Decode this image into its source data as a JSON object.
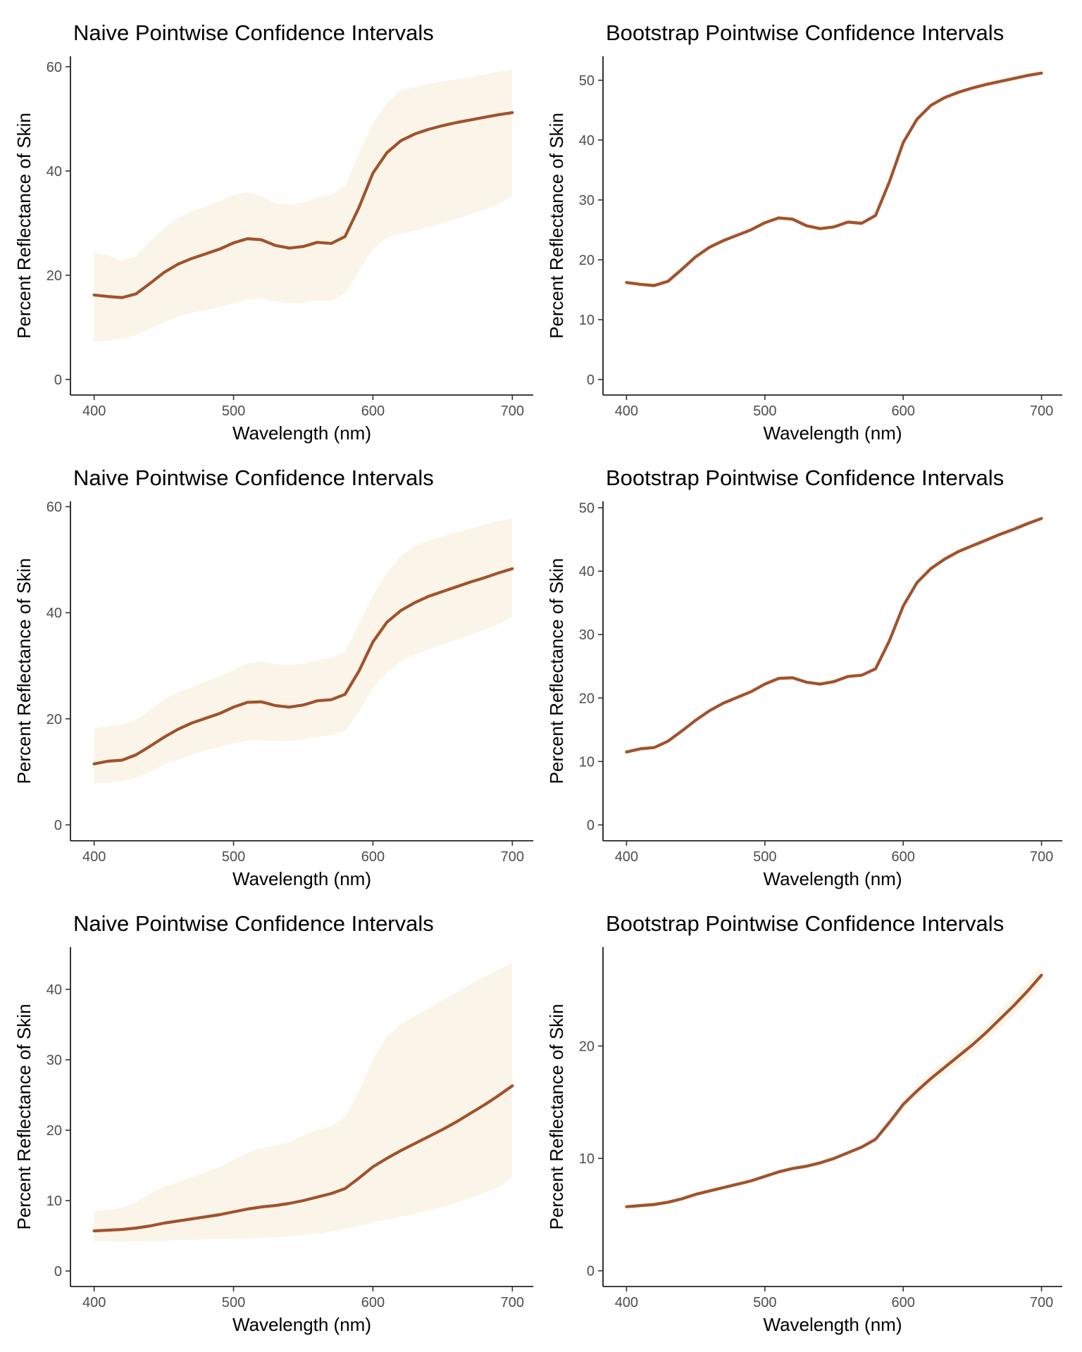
{
  "colors": {
    "line": "#a0522d",
    "band": "#faf5e8",
    "axis": "#000000",
    "tick_text": "#4d4d4d"
  },
  "chart_data": [
    {
      "type": "line",
      "title": "Naive Pointwise Confidence Intervals",
      "xlabel": "Wavelength (nm)",
      "ylabel": "Percent Reflectance of Skin",
      "xlim": [
        383,
        715
      ],
      "ylim": [
        -3,
        62
      ],
      "xticks": [
        400,
        500,
        600,
        700
      ],
      "yticks": [
        0,
        20,
        40,
        60
      ],
      "grid": false,
      "x": [
        400,
        410,
        420,
        430,
        440,
        450,
        460,
        470,
        480,
        490,
        500,
        510,
        520,
        530,
        540,
        550,
        560,
        570,
        580,
        590,
        600,
        610,
        620,
        630,
        640,
        650,
        660,
        670,
        680,
        690,
        700
      ],
      "series": [
        {
          "values": [
            16.2,
            15.9,
            15.7,
            16.4,
            18.4,
            20.5,
            22.1,
            23.2,
            24.1,
            25.0,
            26.2,
            27.0,
            26.8,
            25.7,
            25.2,
            25.5,
            26.3,
            26.1,
            27.4,
            33.0,
            39.6,
            43.5,
            45.8,
            47.1,
            48.0,
            48.7,
            49.3,
            49.8,
            50.3,
            50.8,
            51.2
          ],
          "lower": [
            7.2,
            7.4,
            7.8,
            8.5,
            9.7,
            11.0,
            12.0,
            12.8,
            13.3,
            13.9,
            14.6,
            15.4,
            15.5,
            15.0,
            14.6,
            14.7,
            15.2,
            15.0,
            16.5,
            20.8,
            25.0,
            27.2,
            28.0,
            28.5,
            29.2,
            30.0,
            30.8,
            31.7,
            32.6,
            33.6,
            35.3
          ],
          "upper": [
            24.3,
            23.8,
            22.7,
            23.6,
            26.5,
            29.0,
            31.0,
            32.2,
            33.2,
            34.3,
            35.4,
            35.9,
            35.2,
            33.8,
            33.5,
            34.0,
            34.9,
            35.4,
            37.0,
            43.5,
            49.2,
            53.2,
            55.4,
            56.1,
            56.7,
            57.2,
            57.6,
            58.0,
            58.5,
            59.1,
            59.5
          ]
        }
      ]
    },
    {
      "type": "line",
      "title": "Bootstrap Pointwise Confidence Intervals",
      "xlabel": "Wavelength (nm)",
      "ylabel": "Percent Reflectance of Skin",
      "xlim": [
        383,
        715
      ],
      "ylim": [
        -2.6,
        54
      ],
      "xticks": [
        400,
        500,
        600,
        700
      ],
      "yticks": [
        0,
        10,
        20,
        30,
        40,
        50
      ],
      "grid": false,
      "x": [
        400,
        410,
        420,
        430,
        440,
        450,
        460,
        470,
        480,
        490,
        500,
        510,
        520,
        530,
        540,
        550,
        560,
        570,
        580,
        590,
        600,
        610,
        620,
        630,
        640,
        650,
        660,
        670,
        680,
        690,
        700
      ],
      "series": [
        {
          "values": [
            16.2,
            15.9,
            15.7,
            16.4,
            18.4,
            20.5,
            22.1,
            23.2,
            24.1,
            25.0,
            26.2,
            27.0,
            26.8,
            25.7,
            25.2,
            25.5,
            26.3,
            26.1,
            27.4,
            33.0,
            39.6,
            43.5,
            45.8,
            47.1,
            48.0,
            48.7,
            49.3,
            49.8,
            50.3,
            50.8,
            51.2
          ],
          "lower": [
            15.8,
            15.5,
            15.3,
            16.0,
            18.0,
            20.1,
            21.7,
            22.8,
            23.7,
            24.6,
            25.8,
            26.6,
            26.4,
            25.3,
            24.8,
            25.1,
            25.9,
            25.7,
            27.0,
            32.5,
            39.1,
            43.0,
            45.4,
            46.7,
            47.6,
            48.3,
            48.9,
            49.4,
            49.9,
            50.4,
            50.8
          ],
          "upper": [
            16.6,
            16.3,
            16.1,
            16.8,
            18.8,
            20.9,
            22.5,
            23.6,
            24.5,
            25.4,
            26.6,
            27.4,
            27.2,
            26.1,
            25.6,
            25.9,
            26.7,
            26.5,
            27.8,
            33.5,
            40.1,
            44.0,
            46.2,
            47.5,
            48.4,
            49.1,
            49.7,
            50.2,
            50.7,
            51.2,
            51.6
          ]
        }
      ]
    },
    {
      "type": "line",
      "title": "Naive Pointwise Confidence Intervals",
      "xlabel": "Wavelength (nm)",
      "ylabel": "Percent Reflectance of Skin",
      "xlim": [
        383,
        715
      ],
      "ylim": [
        -3,
        61
      ],
      "xticks": [
        400,
        500,
        600,
        700
      ],
      "yticks": [
        0,
        20,
        40,
        60
      ],
      "grid": false,
      "x": [
        400,
        410,
        420,
        430,
        440,
        450,
        460,
        470,
        480,
        490,
        500,
        510,
        520,
        530,
        540,
        550,
        560,
        570,
        580,
        590,
        600,
        610,
        620,
        630,
        640,
        650,
        660,
        670,
        680,
        690,
        700
      ],
      "series": [
        {
          "values": [
            11.5,
            12.0,
            12.2,
            13.2,
            14.8,
            16.5,
            18.0,
            19.2,
            20.1,
            21.0,
            22.2,
            23.1,
            23.2,
            22.5,
            22.2,
            22.6,
            23.4,
            23.6,
            24.6,
            29.0,
            34.5,
            38.2,
            40.4,
            41.9,
            43.1,
            44.0,
            44.9,
            45.8,
            46.6,
            47.5,
            48.3
          ],
          "lower": [
            7.8,
            8.0,
            8.3,
            8.8,
            10.0,
            11.3,
            12.3,
            13.2,
            14.0,
            14.7,
            15.4,
            15.9,
            16.0,
            15.8,
            15.8,
            16.1,
            16.6,
            16.9,
            17.7,
            21.3,
            25.8,
            28.6,
            30.8,
            32.1,
            33.1,
            34.0,
            34.9,
            35.8,
            36.8,
            37.8,
            39.3
          ],
          "upper": [
            18.2,
            18.6,
            18.9,
            19.8,
            21.6,
            23.7,
            25.0,
            26.0,
            27.0,
            28.0,
            29.2,
            30.5,
            30.8,
            30.3,
            30.2,
            30.4,
            31.1,
            31.5,
            32.6,
            38.0,
            43.3,
            47.5,
            50.7,
            52.6,
            53.6,
            54.4,
            55.2,
            55.9,
            56.6,
            57.3,
            57.8
          ]
        }
      ]
    },
    {
      "type": "line",
      "title": "Bootstrap Pointwise Confidence Intervals",
      "xlabel": "Wavelength (nm)",
      "ylabel": "Percent Reflectance of Skin",
      "xlim": [
        383,
        715
      ],
      "ylim": [
        -2.5,
        51
      ],
      "xticks": [
        400,
        500,
        600,
        700
      ],
      "yticks": [
        0,
        10,
        20,
        30,
        40,
        50
      ],
      "grid": false,
      "x": [
        400,
        410,
        420,
        430,
        440,
        450,
        460,
        470,
        480,
        490,
        500,
        510,
        520,
        530,
        540,
        550,
        560,
        570,
        580,
        590,
        600,
        610,
        620,
        630,
        640,
        650,
        660,
        670,
        680,
        690,
        700
      ],
      "series": [
        {
          "values": [
            11.5,
            12.0,
            12.2,
            13.2,
            14.8,
            16.5,
            18.0,
            19.2,
            20.1,
            21.0,
            22.2,
            23.1,
            23.2,
            22.5,
            22.2,
            22.6,
            23.4,
            23.6,
            24.6,
            29.0,
            34.5,
            38.2,
            40.4,
            41.9,
            43.1,
            44.0,
            44.9,
            45.8,
            46.6,
            47.5,
            48.3
          ],
          "lower": [
            11.2,
            11.7,
            11.9,
            12.9,
            14.5,
            16.2,
            17.7,
            18.9,
            19.8,
            20.7,
            21.9,
            22.8,
            22.9,
            22.2,
            21.9,
            22.3,
            23.1,
            23.3,
            24.3,
            28.6,
            34.1,
            37.8,
            40.0,
            41.5,
            42.7,
            43.6,
            44.5,
            45.4,
            46.2,
            47.1,
            47.9
          ],
          "upper": [
            11.8,
            12.3,
            12.5,
            13.5,
            15.1,
            16.8,
            18.3,
            19.5,
            20.4,
            21.3,
            22.5,
            23.4,
            23.5,
            22.8,
            22.5,
            22.9,
            23.7,
            23.9,
            24.9,
            29.4,
            34.9,
            38.6,
            40.8,
            42.3,
            43.5,
            44.4,
            45.3,
            46.2,
            47.0,
            47.9,
            48.7
          ]
        }
      ]
    },
    {
      "type": "line",
      "title": "Naive Pointwise Confidence Intervals",
      "xlabel": "Wavelength (nm)",
      "ylabel": "Percent Reflectance of Skin",
      "xlim": [
        383,
        715
      ],
      "ylim": [
        -2.2,
        46
      ],
      "xticks": [
        400,
        500,
        600,
        700
      ],
      "yticks": [
        0,
        10,
        20,
        30,
        40
      ],
      "grid": false,
      "x": [
        400,
        410,
        420,
        430,
        440,
        450,
        460,
        470,
        480,
        490,
        500,
        510,
        520,
        530,
        540,
        550,
        560,
        570,
        580,
        590,
        600,
        610,
        620,
        630,
        640,
        650,
        660,
        670,
        680,
        690,
        700
      ],
      "series": [
        {
          "values": [
            5.7,
            5.8,
            5.9,
            6.1,
            6.4,
            6.8,
            7.1,
            7.4,
            7.7,
            8.0,
            8.4,
            8.8,
            9.1,
            9.3,
            9.6,
            10.0,
            10.5,
            11.0,
            11.7,
            13.2,
            14.8,
            16.0,
            17.1,
            18.1,
            19.1,
            20.1,
            21.2,
            22.4,
            23.6,
            24.9,
            26.3
          ],
          "lower": [
            4.2,
            4.2,
            4.2,
            4.2,
            4.3,
            4.3,
            4.4,
            4.4,
            4.5,
            4.5,
            4.6,
            4.6,
            4.7,
            4.8,
            4.9,
            5.1,
            5.3,
            5.6,
            5.9,
            6.4,
            6.9,
            7.3,
            7.7,
            8.1,
            8.6,
            9.1,
            9.7,
            10.4,
            11.1,
            11.9,
            13.3
          ],
          "upper": [
            8.5,
            8.7,
            9.0,
            9.8,
            11.0,
            12.0,
            12.6,
            13.3,
            14.0,
            14.8,
            15.8,
            16.8,
            17.5,
            17.8,
            18.3,
            19.3,
            20.0,
            20.6,
            21.8,
            25.5,
            30.0,
            33.3,
            35.0,
            36.2,
            37.3,
            38.5,
            39.6,
            40.7,
            41.8,
            42.8,
            43.8
          ]
        }
      ]
    },
    {
      "type": "line",
      "title": "Bootstrap Pointwise Confidence Intervals",
      "xlabel": "Wavelength (nm)",
      "ylabel": "Percent Reflectance of Skin",
      "xlim": [
        383,
        715
      ],
      "ylim": [
        -1.4,
        28.8
      ],
      "xticks": [
        400,
        500,
        600,
        700
      ],
      "yticks": [
        0,
        10,
        20
      ],
      "grid": false,
      "x": [
        400,
        410,
        420,
        430,
        440,
        450,
        460,
        470,
        480,
        490,
        500,
        510,
        520,
        530,
        540,
        550,
        560,
        570,
        580,
        590,
        600,
        610,
        620,
        630,
        640,
        650,
        660,
        670,
        680,
        690,
        700
      ],
      "series": [
        {
          "values": [
            5.7,
            5.8,
            5.9,
            6.1,
            6.4,
            6.8,
            7.1,
            7.4,
            7.7,
            8.0,
            8.4,
            8.8,
            9.1,
            9.3,
            9.6,
            10.0,
            10.5,
            11.0,
            11.7,
            13.2,
            14.8,
            16.0,
            17.1,
            18.1,
            19.1,
            20.1,
            21.2,
            22.4,
            23.6,
            24.9,
            26.3
          ],
          "lower": [
            5.5,
            5.6,
            5.7,
            5.9,
            6.2,
            6.6,
            6.9,
            7.2,
            7.5,
            7.8,
            8.2,
            8.6,
            8.9,
            9.1,
            9.4,
            9.8,
            10.3,
            10.8,
            11.5,
            12.9,
            14.4,
            15.5,
            16.5,
            17.5,
            18.4,
            19.4,
            20.5,
            21.6,
            22.8,
            24.1,
            25.4
          ],
          "upper": [
            5.9,
            6.0,
            6.1,
            6.3,
            6.6,
            7.0,
            7.3,
            7.6,
            7.9,
            8.2,
            8.6,
            9.0,
            9.3,
            9.5,
            9.8,
            10.2,
            10.7,
            11.2,
            11.9,
            13.5,
            15.2,
            16.5,
            17.7,
            18.7,
            19.8,
            20.8,
            21.9,
            23.2,
            24.4,
            25.7,
            27.2
          ]
        }
      ]
    }
  ]
}
